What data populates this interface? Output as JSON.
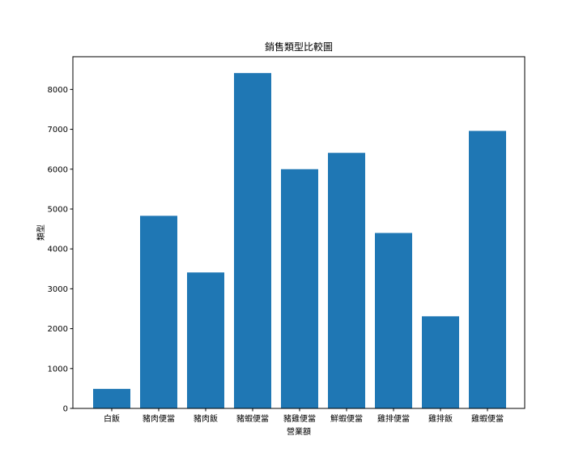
{
  "chart_data": {
    "type": "bar",
    "title": "銷售類型比較圖",
    "xlabel": "營業額",
    "ylabel": "類型",
    "categories": [
      "白飯",
      "豬肉便當",
      "豬肉飯",
      "豬蝦便當",
      "豬雞便當",
      "鮮蝦便當",
      "雞排便當",
      "雞排飯",
      "雞蝦便當"
    ],
    "values": [
      490,
      4830,
      3410,
      8410,
      6000,
      6410,
      4400,
      2310,
      6960
    ],
    "ylim": [
      0,
      8820
    ],
    "yticks": [
      0,
      1000,
      2000,
      3000,
      4000,
      5000,
      6000,
      7000,
      8000
    ],
    "bar_color": "#1f77b4",
    "grid": false,
    "legend": "none"
  }
}
